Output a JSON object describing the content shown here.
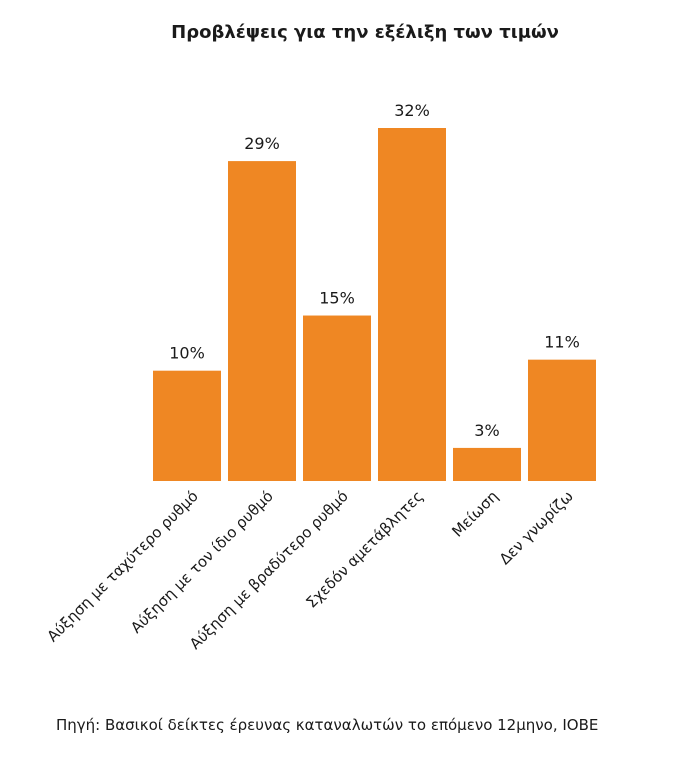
{
  "chart_data": {
    "type": "bar",
    "title": "Προβλέψεις για την εξέλιξη των τιμών",
    "categories": [
      "Αύξηση με ταχύτερο ρυθμό",
      "Αύξηση με τον ίδιο ρυθμό",
      "Αύξηση με βραδύτερο ρυθμό",
      "Σχεδόν αμετάβλητες",
      "Μείωση",
      "Δεν γνωρίζω"
    ],
    "values": [
      10,
      29,
      15,
      32,
      3,
      11
    ],
    "value_labels": [
      "10%",
      "29%",
      "15%",
      "32%",
      "3%",
      "11%"
    ],
    "unit": "%",
    "ylim": [
      0,
      32
    ],
    "grid": false,
    "bar_color": "#ef8723",
    "axis_color": "#ffffff"
  },
  "source": "Πηγή: Βασικοί δείκτες έρευνας καταναλωτών το επόμενο 12μηνο, ΙΟΒΕ"
}
